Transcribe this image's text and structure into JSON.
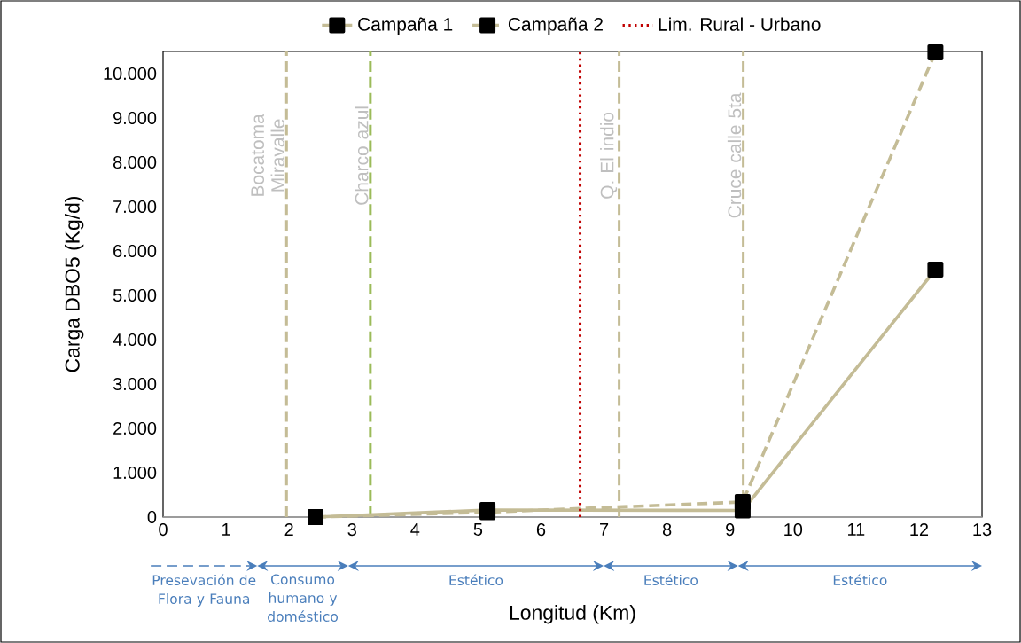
{
  "chart_data": {
    "type": "line",
    "xlabel": "Longitud (Km)",
    "ylabel": "Carga DBO5 (Kg/d)",
    "xlim": [
      0,
      13
    ],
    "xticks": [
      0,
      1,
      2,
      3,
      4,
      5,
      6,
      7,
      8,
      9,
      10,
      11,
      12,
      13
    ],
    "ylim": [
      0,
      10500
    ],
    "yticks": [
      0,
      {
        "value": 1000,
        "label": "1.000"
      },
      {
        "value": 2000,
        "label": "2.000"
      },
      {
        "value": 3000,
        "label": "3.000"
      },
      {
        "value": 4000,
        "label": "4.000"
      },
      {
        "value": 5000,
        "label": "5.000"
      },
      {
        "value": 6000,
        "label": "6.000"
      },
      {
        "value": 7000,
        "label": "7.000"
      },
      {
        "value": 8000,
        "label": "8.000"
      },
      {
        "value": 9000,
        "label": "9.000"
      },
      {
        "value": 10000,
        "label": "10.000"
      }
    ],
    "x": [
      2.42,
      5.15,
      9.2,
      12.26
    ],
    "series": [
      {
        "name": "Campaña 1",
        "color": "#c4bc96",
        "values": [
          0,
          160,
          150,
          5580
        ],
        "line_style": "solid",
        "marker": "square"
      },
      {
        "name": "Campaña 2",
        "color": "#c4bc96",
        "values": [
          0,
          110,
          340,
          10480
        ],
        "line_style": "dashed",
        "marker": "square"
      },
      {
        "name": "Lim. Rural - Urbano",
        "color": "#c00000",
        "x": [
          6.62,
          6.62
        ],
        "values": [
          0,
          10500
        ],
        "line_style": "dotted",
        "marker": "none"
      }
    ],
    "ref_lines": [
      {
        "axis": "x",
        "value": 1.96,
        "label": "Bocatoma Miravalle",
        "color": "#c4bc96",
        "line_style": "dashed"
      },
      {
        "axis": "x",
        "value": 3.29,
        "label": "Charco azul",
        "color": "#9bbb59",
        "line_style": "dashed"
      },
      {
        "axis": "x",
        "value": 7.24,
        "label": "Q. El indio",
        "color": "#c4bc96",
        "line_style": "dashed"
      },
      {
        "axis": "x",
        "value": 9.21,
        "label": "Cruce calle 5ta",
        "color": "#c4bc96",
        "line_style": "dashed"
      }
    ],
    "annotations": [
      "Presevación de Flora y Fauna",
      "Consumo humano y doméstico",
      "Estético",
      "Estético",
      "Estético"
    ],
    "grid": false,
    "legend": "top"
  }
}
